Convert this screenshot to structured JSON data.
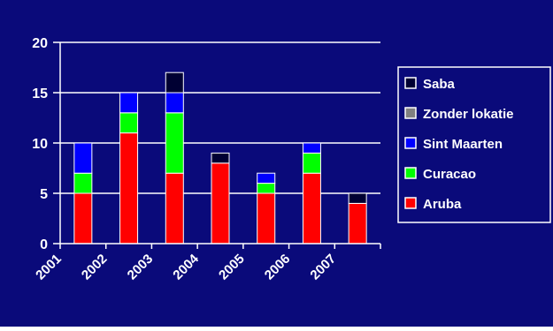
{
  "chart_data": {
    "type": "bar",
    "stacked": true,
    "categories": [
      "2001",
      "2002",
      "2003",
      "2004",
      "2005",
      "2006",
      "2007"
    ],
    "series": [
      {
        "name": "Aruba",
        "color": "#ff0000",
        "values": [
          5,
          11,
          7,
          8,
          5,
          7,
          4
        ]
      },
      {
        "name": "Curacao",
        "color": "#00ff00",
        "values": [
          2,
          2,
          6,
          0,
          1,
          2,
          0
        ]
      },
      {
        "name": "Sint Maarten",
        "color": "#0000ff",
        "values": [
          3,
          2,
          2,
          0,
          1,
          1,
          0
        ]
      },
      {
        "name": "Zonder lokatie",
        "color": "#808080",
        "values": [
          0,
          0,
          0,
          0,
          0,
          0,
          0
        ]
      },
      {
        "name": "Saba",
        "color": "#000033",
        "values": [
          0,
          0,
          2,
          1,
          0,
          0,
          1
        ]
      }
    ],
    "yticks": [
      0,
      5,
      10,
      15,
      20
    ],
    "ylim": [
      0,
      20
    ],
    "grid": true,
    "legend_position": "right",
    "legend_order": [
      "Saba",
      "Zonder lokatie",
      "Sint Maarten",
      "Curacao",
      "Aruba"
    ],
    "colors": {
      "background": "#0a0a7a",
      "gridline": "#ffffff",
      "axis": "#ffffff",
      "text": "#ffffff",
      "bar_outline": "#ffffff"
    }
  }
}
